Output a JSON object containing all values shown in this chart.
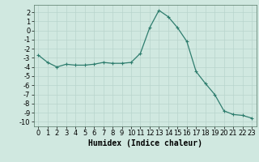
{
  "x": [
    0,
    1,
    2,
    3,
    4,
    5,
    6,
    7,
    8,
    9,
    10,
    11,
    12,
    13,
    14,
    15,
    16,
    17,
    18,
    19,
    20,
    21,
    22,
    23
  ],
  "y": [
    -2.7,
    -3.5,
    -4.0,
    -3.7,
    -3.8,
    -3.8,
    -3.7,
    -3.5,
    -3.6,
    -3.6,
    -3.5,
    -2.5,
    0.3,
    2.2,
    1.5,
    0.3,
    -1.2,
    -4.5,
    -5.8,
    -7.0,
    -8.8,
    -9.2,
    -9.3,
    -9.6
  ],
  "line_color": "#2e7d6e",
  "marker": "+",
  "marker_size": 3,
  "xlabel": "Humidex (Indice chaleur)",
  "xlim": [
    -0.5,
    23.5
  ],
  "ylim": [
    -10.5,
    2.8
  ],
  "yticks": [
    2,
    1,
    0,
    -1,
    -2,
    -3,
    -4,
    -5,
    -6,
    -7,
    -8,
    -9,
    -10
  ],
  "xticks": [
    0,
    1,
    2,
    3,
    4,
    5,
    6,
    7,
    8,
    9,
    10,
    11,
    12,
    13,
    14,
    15,
    16,
    17,
    18,
    19,
    20,
    21,
    22,
    23
  ],
  "bg_color": "#d0e8e0",
  "grid_color": "#b8d4cc",
  "xlabel_fontsize": 7,
  "tick_fontsize": 6
}
